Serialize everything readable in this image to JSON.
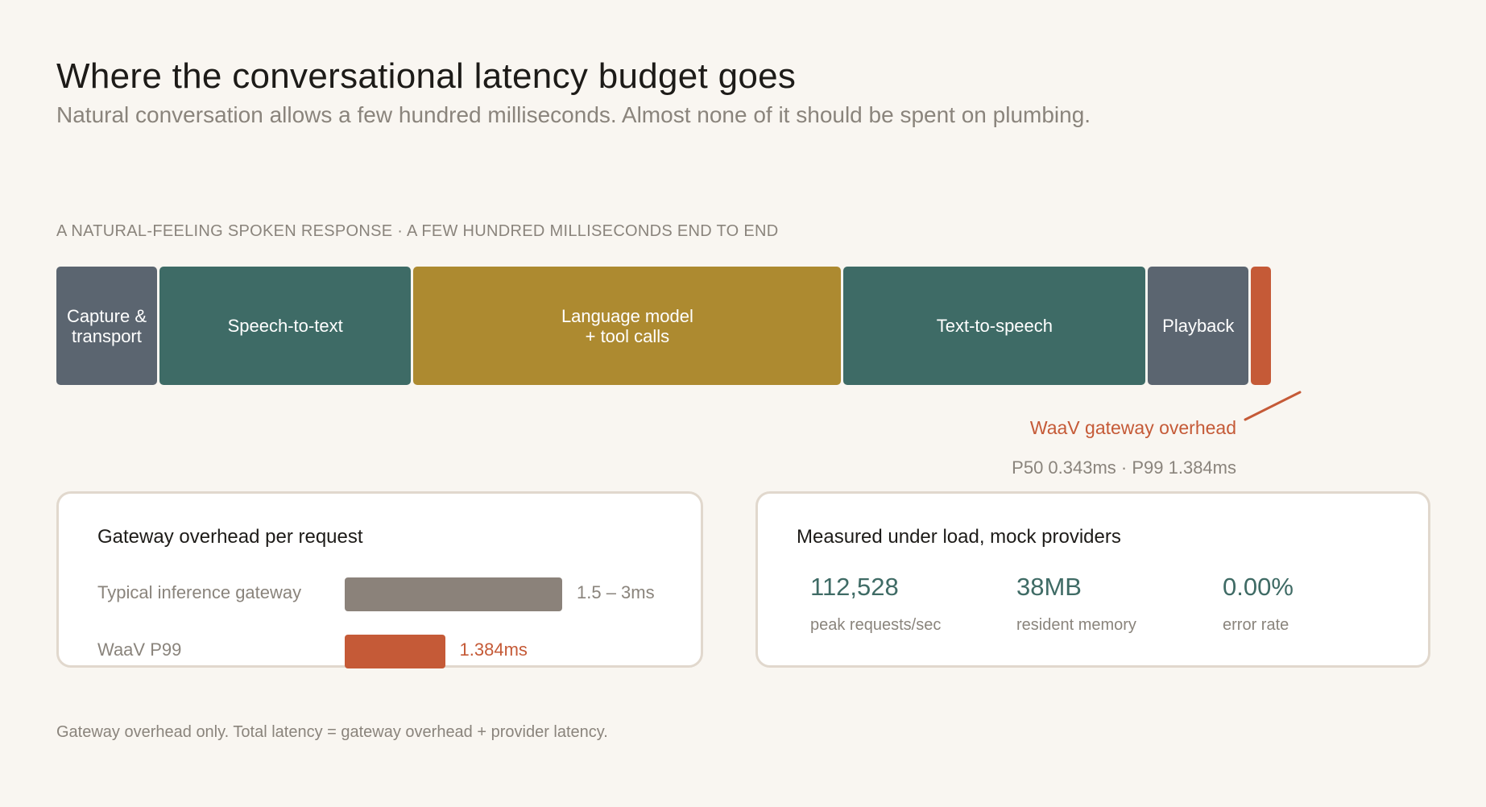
{
  "header": {
    "title": "Where the conversational latency budget goes",
    "subtitle": "Natural conversation allows a few hundred milliseconds. Almost none of it should be spent on plumbing."
  },
  "chart_data": [
    {
      "type": "bar",
      "label": "A NATURAL-FEELING SPOKEN RESPONSE  ·  A FEW HUNDRED MILLISECONDS END TO END",
      "segments": [
        {
          "name": "Capture &\ntransport",
          "share": 0.08,
          "color": "#5b6570"
        },
        {
          "name": "Speech-to-text",
          "share": 0.2,
          "color": "#3e6b66"
        },
        {
          "name": "Language model\n+ tool calls",
          "share": 0.34,
          "color": "#ad8a30"
        },
        {
          "name": "Text-to-speech",
          "share": 0.24,
          "color": "#3e6b66"
        },
        {
          "name": "Playback",
          "share": 0.08,
          "color": "#5b6570"
        },
        {
          "name": "",
          "share": 0.016,
          "color": "#c55a37"
        }
      ],
      "annotation": {
        "label": "WaaV gateway overhead",
        "stats": "P50 0.343ms  ·  P99 1.384ms"
      }
    },
    {
      "type": "bar",
      "title": "Gateway overhead per request",
      "categories": [
        "Typical inference gateway",
        "WaaV P99"
      ],
      "ranges": [
        [
          1.5,
          3
        ],
        [
          0,
          1.384
        ]
      ],
      "value_labels": [
        "1.5 – 3ms",
        "1.384ms"
      ],
      "colors": [
        "#8b827a",
        "#c55a37"
      ]
    }
  ],
  "metrics_card": {
    "title": "Measured under load, mock providers",
    "items": [
      {
        "value": "112,528",
        "label": "peak requests/sec"
      },
      {
        "value": "38MB",
        "label": "resident memory"
      },
      {
        "value": "0.00%",
        "label": "error rate"
      }
    ]
  },
  "footnote": "Gateway overhead only. Total latency = gateway overhead + provider latency."
}
